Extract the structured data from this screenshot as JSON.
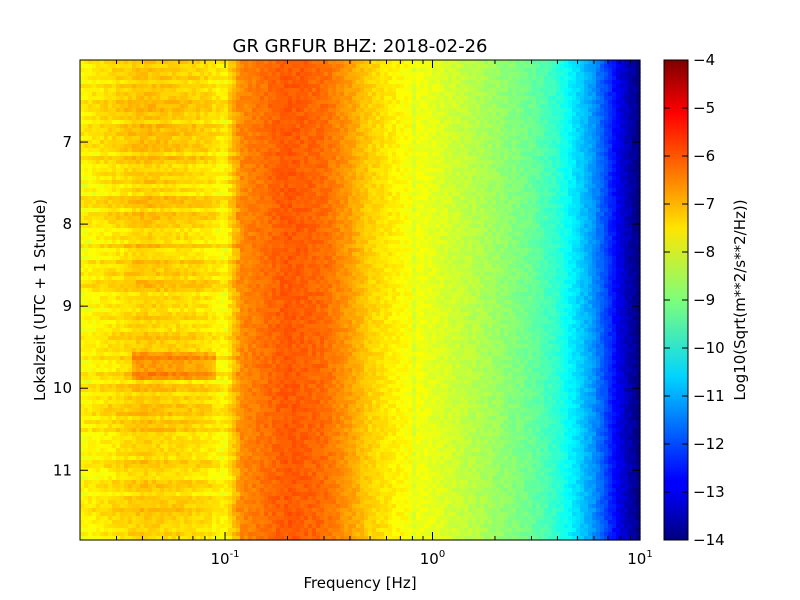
{
  "chart_data": {
    "type": "heatmap",
    "title": "GR GRFUR BHZ: 2018-02-26",
    "xlabel": "Frequency [Hz]",
    "ylabel": "Lokalzeit (UTC + 1 Stunde)",
    "xscale": "log",
    "xlim": [
      0.02,
      10
    ],
    "ylim": [
      6,
      11.85
    ],
    "y_inverted": true,
    "grid": false,
    "x_ticks": [
      {
        "value": 0.1,
        "base": "10",
        "exp": "-1"
      },
      {
        "value": 1,
        "base": "10",
        "exp": "0"
      },
      {
        "value": 10,
        "base": "10",
        "exp": "1"
      }
    ],
    "y_ticks": [
      {
        "value": 7,
        "label": "7"
      },
      {
        "value": 8,
        "label": "8"
      },
      {
        "value": 9,
        "label": "9"
      },
      {
        "value": 10,
        "label": "10"
      },
      {
        "value": 11,
        "label": "11"
      }
    ],
    "colormap": "jet",
    "colorbar": {
      "label": "Log10(Sqrt(m**2/s**2/Hz))",
      "range": [
        -14,
        -4
      ],
      "ticks": [
        {
          "value": -4,
          "label": "−4"
        },
        {
          "value": -5,
          "label": "−5"
        },
        {
          "value": -6,
          "label": "−6"
        },
        {
          "value": -7,
          "label": "−7"
        },
        {
          "value": -8,
          "label": "−8"
        },
        {
          "value": -9,
          "label": "−9"
        },
        {
          "value": -10,
          "label": "−10"
        },
        {
          "value": -11,
          "label": "−11"
        },
        {
          "value": -12,
          "label": "−12"
        },
        {
          "value": -13,
          "label": "−13"
        },
        {
          "value": -14,
          "label": "−14"
        }
      ]
    },
    "spectrum_profile": {
      "frequencies": [
        0.02,
        0.04,
        0.06,
        0.08,
        0.1,
        0.12,
        0.2,
        0.3,
        0.4,
        0.5,
        0.7,
        1,
        1.5,
        2,
        3,
        4,
        5,
        6,
        7,
        8,
        9,
        10
      ],
      "values": [
        -7.7,
        -7.2,
        -7.3,
        -7.4,
        -7.7,
        -6.6,
        -6.1,
        -6.3,
        -6.8,
        -7.3,
        -7.7,
        -8.0,
        -8.4,
        -8.7,
        -9.2,
        -9.8,
        -10.6,
        -11.3,
        -12.2,
        -13.0,
        -13.6,
        -14.0
      ]
    },
    "annotations": [
      "stronger energy band near 9.6–9.9 h between 0.04 and 0.09 Hz"
    ]
  }
}
